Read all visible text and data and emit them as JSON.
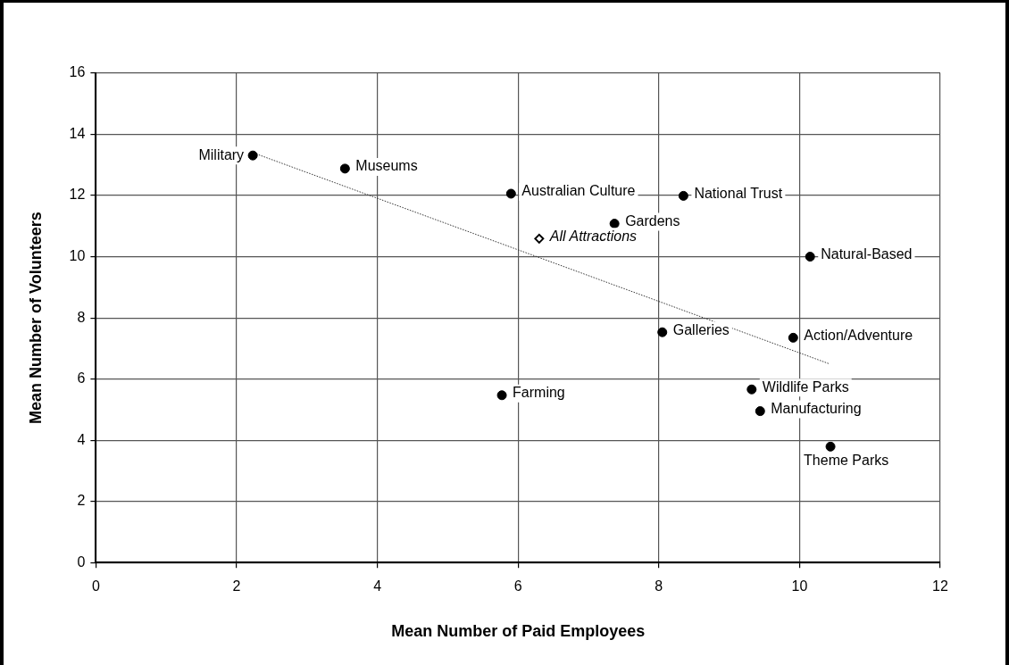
{
  "chart_data": {
    "type": "scatter",
    "xlabel": "Mean Number of Paid Employees",
    "ylabel": "Mean Number of Volunteers",
    "xlim": [
      0,
      12
    ],
    "xticks": [
      0,
      2,
      4,
      6,
      8,
      10,
      12
    ],
    "ylim": [
      0,
      16
    ],
    "yticks": [
      0,
      2,
      4,
      6,
      8,
      10,
      12,
      14,
      16
    ],
    "grid": true,
    "legend": false,
    "marker": "circle",
    "series": [
      {
        "name": "Military",
        "color": "#000000",
        "x": [
          2.23
        ],
        "values": [
          13.31
        ]
      },
      {
        "name": "Museums",
        "color": "#000000",
        "x": [
          3.54
        ],
        "values": [
          12.88
        ]
      },
      {
        "name": "Australian Culture",
        "color": "#000000",
        "x": [
          5.9
        ],
        "values": [
          12.06
        ]
      },
      {
        "name": "National Trust",
        "color": "#000000",
        "x": [
          8.35
        ],
        "values": [
          11.99
        ]
      },
      {
        "name": "Gardens",
        "color": "#000000",
        "x": [
          7.37
        ],
        "values": [
          11.08
        ]
      },
      {
        "name": "All Attractions",
        "color": "#000000",
        "x": [
          6.3
        ],
        "values": [
          10.59
        ],
        "marker": "diamond"
      },
      {
        "name": "Natural-Based",
        "color": "#000000",
        "x": [
          10.15
        ],
        "values": [
          10.0
        ]
      },
      {
        "name": "Galleries",
        "color": "#000000",
        "x": [
          8.05
        ],
        "values": [
          7.53
        ]
      },
      {
        "name": "Action/Adventure",
        "color": "#000000",
        "x": [
          9.91
        ],
        "values": [
          7.35
        ]
      },
      {
        "name": "Farming",
        "color": "#000000",
        "x": [
          5.77
        ],
        "values": [
          5.47
        ]
      },
      {
        "name": "Wildlife Parks",
        "color": "#000000",
        "x": [
          9.32
        ],
        "values": [
          5.66
        ]
      },
      {
        "name": "Manufacturing",
        "color": "#000000",
        "x": [
          9.44
        ],
        "values": [
          4.95
        ]
      },
      {
        "name": "Theme Parks",
        "color": "#000000",
        "x": [
          10.44
        ],
        "values": [
          3.79
        ]
      },
      {
        "type": "line",
        "color": "#333333",
        "line_style": "dotted",
        "marker": "none",
        "x": [
          2.28,
          10.42
        ],
        "values": [
          13.36,
          6.5
        ]
      }
    ]
  }
}
